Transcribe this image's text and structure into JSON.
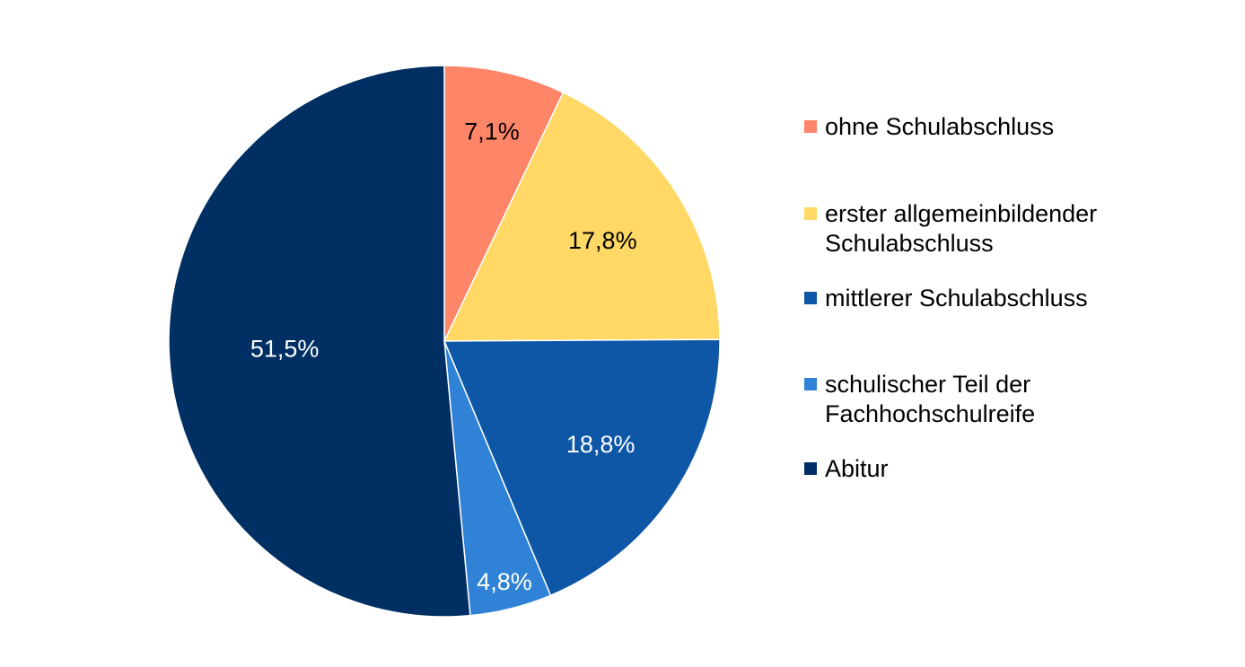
{
  "chart_data": {
    "type": "pie",
    "title": "",
    "unit": "%",
    "slices": [
      {
        "name": "ohne Schulabschluss",
        "value": 7.1,
        "label": "7,1%",
        "color": "#FF8568",
        "label_color": "#000000"
      },
      {
        "name": "erster allgemeinbildender\nSchulabschluss",
        "value": 17.8,
        "label": "17,8%",
        "color": "#FFD866",
        "label_color": "#000000"
      },
      {
        "name": "mittlerer Schulabschluss",
        "value": 18.8,
        "label": "18,8%",
        "color": "#0E57A6",
        "label_color": "#ffffff"
      },
      {
        "name": "schulischer Teil der\nFachhochschulreife",
        "value": 4.8,
        "label": "4,8%",
        "color": "#2F82D6",
        "label_color": "#ffffff"
      },
      {
        "name": "Abitur",
        "value": 51.5,
        "label": "51,5%",
        "color": "#002F63",
        "label_color": "#ffffff"
      }
    ],
    "start_angle_deg": 0,
    "direction": "clockwise",
    "legend_position": "right"
  }
}
